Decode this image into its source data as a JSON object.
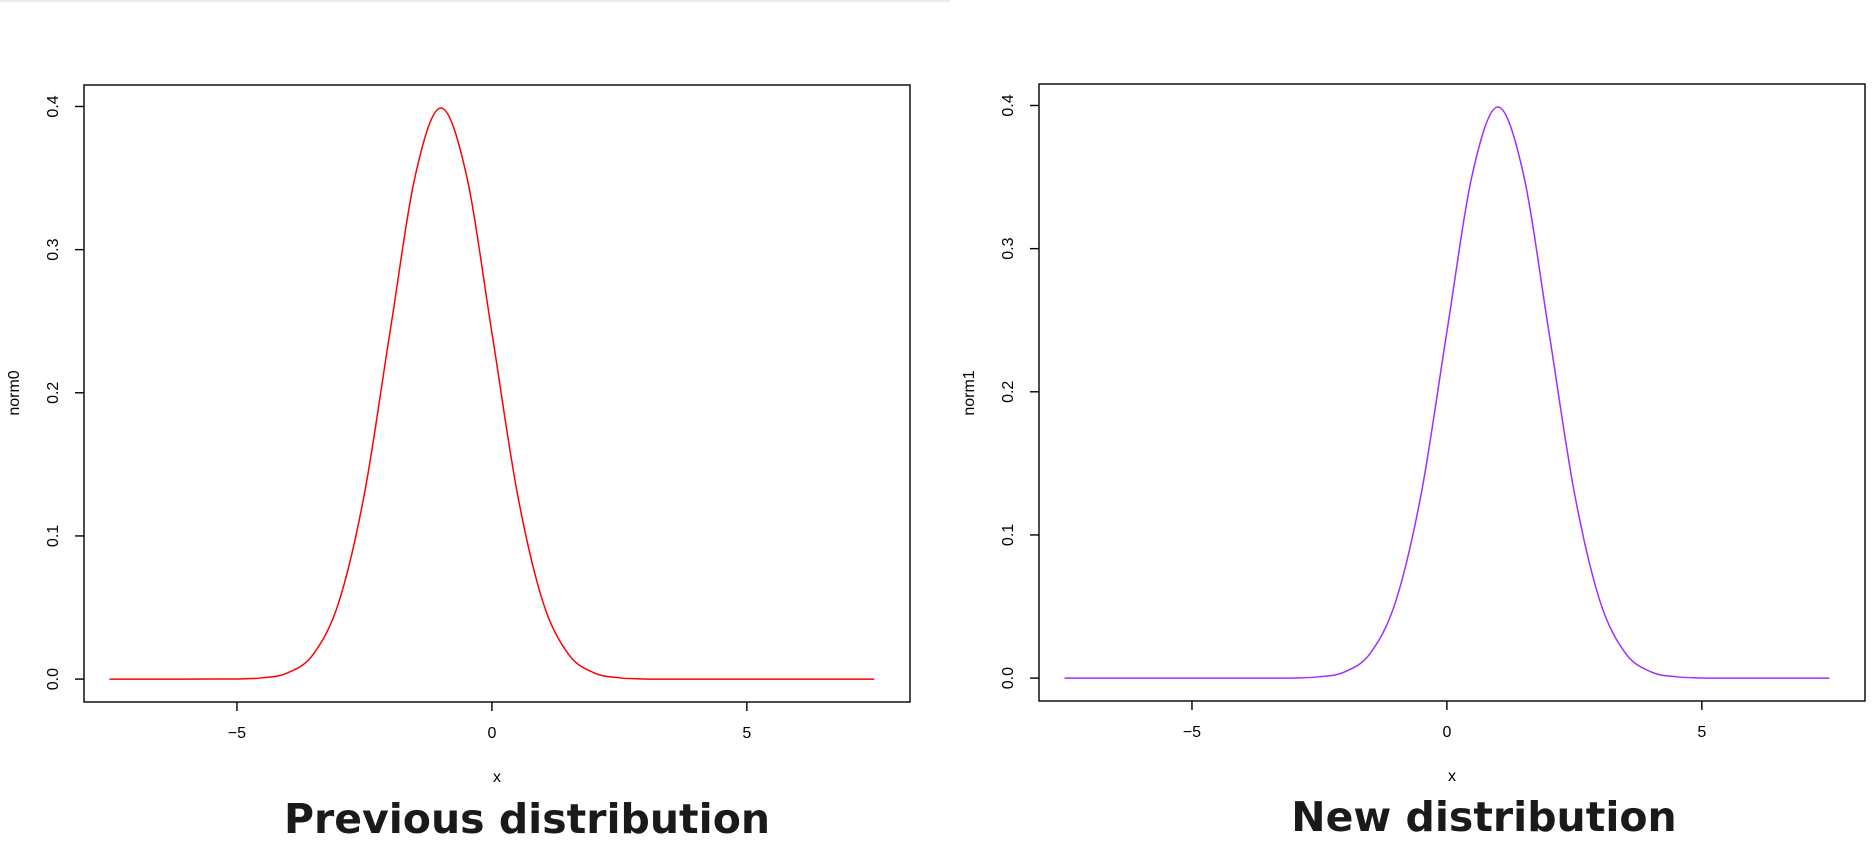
{
  "chart_data": [
    {
      "type": "line",
      "caption": "Previous distribution",
      "xlabel": "x",
      "ylabel": "norm0",
      "xlim": [
        -8,
        8.2
      ],
      "ylim": [
        -0.016,
        0.415
      ],
      "x_ticks": [
        -5,
        0,
        5
      ],
      "x_tick_labels": [
        "−5",
        "0",
        "5"
      ],
      "y_ticks": [
        0.0,
        0.1,
        0.2,
        0.3,
        0.4
      ],
      "y_tick_labels": [
        "0.0",
        "0.1",
        "0.2",
        "0.3",
        "0.4"
      ],
      "grid": false,
      "color": "#ff0000",
      "series": [
        {
          "x": [
            -7.5,
            -7.0,
            -6.5,
            -6.0,
            -5.5,
            -5.0,
            -4.5,
            -4.0,
            -3.5,
            -3.0,
            -2.5,
            -2.0,
            -1.5,
            -1.0,
            -0.5,
            0.0,
            0.5,
            1.0,
            1.5,
            2.0,
            2.5,
            3.0,
            3.5,
            4.0,
            4.5,
            5.0,
            5.5,
            6.0,
            6.5,
            7.0,
            7.5
          ],
          "values": [
            0.0,
            0.0,
            0.0,
            0.0,
            0.0001,
            0.0001,
            0.0009,
            0.0044,
            0.0175,
            0.054,
            0.1295,
            0.242,
            0.3521,
            0.3989,
            0.3521,
            0.242,
            0.1295,
            0.054,
            0.0175,
            0.0044,
            0.0009,
            0.0001,
            0.0,
            0.0,
            0.0,
            0.0,
            0.0,
            0.0,
            0.0,
            0.0,
            0.0
          ]
        }
      ]
    },
    {
      "type": "line",
      "caption": "New distribution",
      "xlabel": "x",
      "ylabel": "norm1",
      "xlim": [
        -8,
        8.2
      ],
      "ylim": [
        -0.016,
        0.415
      ],
      "x_ticks": [
        -5,
        0,
        5
      ],
      "x_tick_labels": [
        "−5",
        "0",
        "5"
      ],
      "y_ticks": [
        0.0,
        0.1,
        0.2,
        0.3,
        0.4
      ],
      "y_tick_labels": [
        "0.0",
        "0.1",
        "0.2",
        "0.3",
        "0.4"
      ],
      "grid": false,
      "color": "#9b30ff",
      "series": [
        {
          "x": [
            -7.5,
            -7.0,
            -6.5,
            -6.0,
            -5.5,
            -5.0,
            -4.5,
            -4.0,
            -3.5,
            -3.0,
            -2.5,
            -2.0,
            -1.5,
            -1.0,
            -0.5,
            0.0,
            0.5,
            1.0,
            1.5,
            2.0,
            2.5,
            3.0,
            3.5,
            4.0,
            4.5,
            5.0,
            5.5,
            6.0,
            6.5,
            7.0,
            7.5
          ],
          "values": [
            0.0,
            0.0,
            0.0,
            0.0,
            0.0,
            0.0,
            0.0,
            0.0,
            0.0,
            0.0001,
            0.0009,
            0.0044,
            0.0175,
            0.054,
            0.1295,
            0.242,
            0.3521,
            0.3989,
            0.3521,
            0.242,
            0.1295,
            0.054,
            0.0175,
            0.0044,
            0.0009,
            0.0001,
            0.0,
            0.0,
            0.0,
            0.0,
            0.0
          ]
        }
      ]
    }
  ]
}
